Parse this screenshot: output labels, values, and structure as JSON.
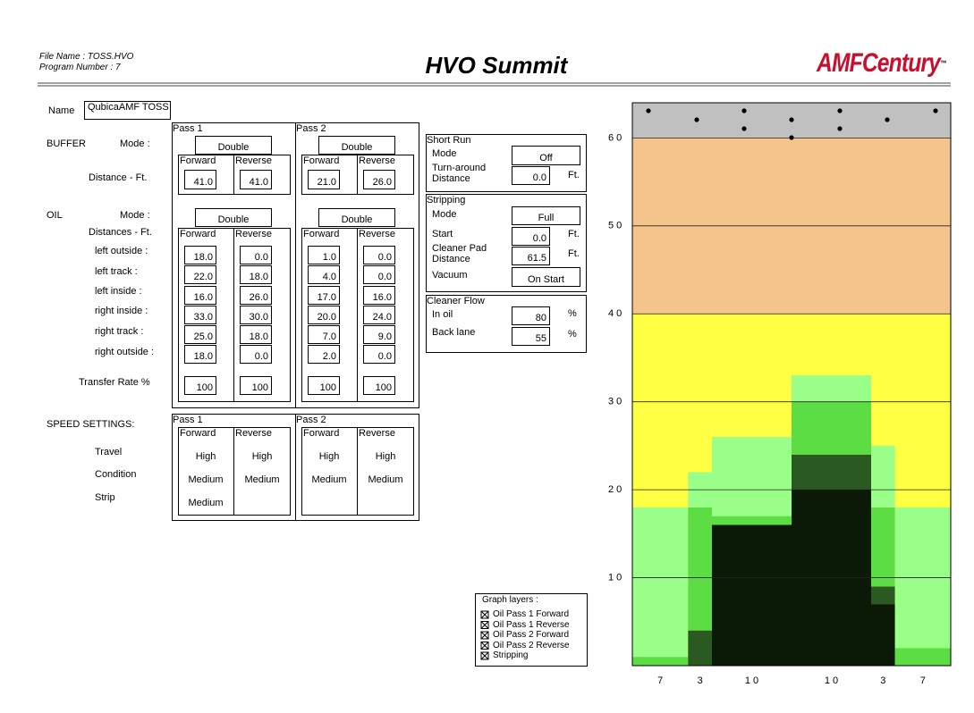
{
  "header": {
    "file_name": "File Name : TOSS.HVO",
    "program_number": "Program Number : 7",
    "title": "HVO Summit",
    "logo_amf": "AMF",
    "logo_century": "Century",
    "logo_tm": "™"
  },
  "name": {
    "label": "Name",
    "value": "QubicaAMF TOSS"
  },
  "passes": [
    "Pass 1",
    "Pass 2"
  ],
  "directions": [
    "Forward",
    "Reverse"
  ],
  "buffer": {
    "label": "BUFFER",
    "mode_label": "Mode :",
    "modes": [
      "Double",
      "Double"
    ],
    "distance_label": "Distance - Ft.",
    "distances": [
      "41.0",
      "41.0",
      "21.0",
      "26.0"
    ]
  },
  "oil": {
    "label": "OIL",
    "mode_label": "Mode :",
    "modes": [
      "Double",
      "Double"
    ],
    "distances_label": "Distances - Ft.",
    "rows": [
      {
        "label": "left outside :",
        "values": [
          18,
          0,
          1,
          0
        ],
        "value_labels": [
          "18.0",
          "0.0",
          "1.0",
          "0.0"
        ]
      },
      {
        "label": "left track :",
        "values": [
          22,
          18,
          4,
          0
        ],
        "value_labels": [
          "22.0",
          "18.0",
          "4.0",
          "0.0"
        ]
      },
      {
        "label": "left inside :",
        "values": [
          16,
          26,
          17,
          16
        ],
        "value_labels": [
          "16.0",
          "26.0",
          "17.0",
          "16.0"
        ]
      },
      {
        "label": "right inside :",
        "values": [
          33,
          30,
          20,
          24
        ],
        "value_labels": [
          "33.0",
          "30.0",
          "20.0",
          "24.0"
        ]
      },
      {
        "label": "right track :",
        "values": [
          25,
          18,
          7,
          9
        ],
        "value_labels": [
          "25.0",
          "18.0",
          "7.0",
          "9.0"
        ]
      },
      {
        "label": "right outside :",
        "values": [
          18,
          0,
          2,
          0
        ],
        "value_labels": [
          "18.0",
          "0.0",
          "2.0",
          "0.0"
        ]
      }
    ],
    "transfer_label": "Transfer Rate %",
    "transfer": [
      "100",
      "100",
      "100",
      "100"
    ]
  },
  "speed": {
    "label": "SPEED SETTINGS:",
    "rows": [
      "Travel",
      "Condition",
      "Strip"
    ],
    "columns": [
      [
        "High",
        "Medium",
        "Medium"
      ],
      [
        "High",
        "Medium"
      ],
      [
        "High",
        "Medium"
      ],
      [
        "High",
        "Medium"
      ]
    ]
  },
  "short_run": {
    "title": "Short Run",
    "mode_label": "Mode",
    "mode": "Off",
    "turnaround_label": [
      "Turn-around",
      "Distance"
    ],
    "turnaround": "0.0",
    "unit": "Ft."
  },
  "stripping": {
    "title": "Stripping",
    "mode_label": "Mode",
    "mode": "Full",
    "start_label": "Start",
    "start": "0.0",
    "start_unit": "Ft.",
    "pad_label": [
      "Cleaner Pad",
      "Distance"
    ],
    "pad": "61.5",
    "pad_unit": "Ft.",
    "vacuum_label": "Vacuum",
    "vacuum": "On Start"
  },
  "cleaner_flow": {
    "title": "Cleaner Flow",
    "in_oil_label": "In oil",
    "in_oil": "80",
    "in_oil_unit": "%",
    "back_label": "Back lane",
    "back": "55",
    "back_unit": "%"
  },
  "graph_layers": {
    "title": "Graph layers :",
    "items": [
      "Oil Pass 1 Forward",
      "Oil Pass 1 Reverse",
      "Oil Pass 2 Forward",
      "Oil Pass 2 Reverse",
      "Stripping"
    ]
  },
  "graph": {
    "ylim": [
      0,
      64
    ],
    "yticks": [
      {
        "value": 10,
        "label": "1 0"
      },
      {
        "value": 20,
        "label": "2 0"
      },
      {
        "value": 30,
        "label": "3 0"
      },
      {
        "value": 40,
        "label": "4 0"
      },
      {
        "value": 50,
        "label": "5 0"
      },
      {
        "value": 60,
        "label": "6 0"
      }
    ],
    "columns": [
      7,
      3,
      {
        "value": 10,
        "label": "1 0"
      },
      {
        "value": 10,
        "label": "1 0"
      },
      3,
      7
    ],
    "zones": [
      {
        "from": 0,
        "to": 40,
        "color": "#ffff44"
      },
      {
        "from": 40,
        "to": 60,
        "color": "#f5c48c"
      },
      {
        "from": 60,
        "to": 64,
        "color": "#c0c0c0"
      }
    ],
    "layer_colors": [
      "#99ff88",
      "#5ddd44",
      "#2a5a22",
      "#0a1a06"
    ]
  }
}
